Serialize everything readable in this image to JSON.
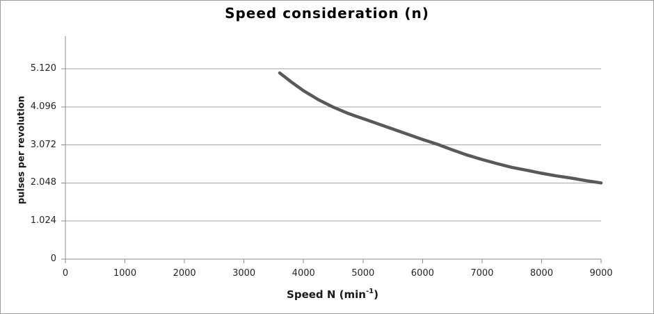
{
  "chart": {
    "title": "Speed consideration (n)",
    "ylabel": "pulses per revolution",
    "xlabel_parts": {
      "main": "Speed N (min",
      "sup": "-1",
      "close": ")"
    }
  },
  "chart_data": {
    "type": "line",
    "title": "Speed consideration (n)",
    "xlabel": "Speed N (min-1)",
    "ylabel": "pulses per revolution",
    "xlim": [
      0,
      9000
    ],
    "ylim": [
      0,
      6000
    ],
    "x_ticks": [
      "0",
      "1000",
      "2000",
      "3000",
      "4000",
      "5000",
      "6000",
      "7000",
      "8000",
      "9000"
    ],
    "y_ticks": [
      {
        "value": 5120,
        "label": "5.120"
      },
      {
        "value": 4096,
        "label": "4.096"
      },
      {
        "value": 3072,
        "label": "3.072"
      },
      {
        "value": 2048,
        "label": "2.048"
      },
      {
        "value": 1024,
        "label": "1.024"
      },
      {
        "value": 0,
        "label": "0"
      }
    ],
    "grid": "horizontal-only",
    "legend": "none",
    "series": [
      {
        "color": "#595959",
        "stroke_width": 4.5,
        "points": [
          [
            3600,
            5010
          ],
          [
            3800,
            4760
          ],
          [
            4000,
            4530
          ],
          [
            4250,
            4290
          ],
          [
            4500,
            4090
          ],
          [
            4750,
            3920
          ],
          [
            5000,
            3780
          ],
          [
            5250,
            3640
          ],
          [
            5500,
            3500
          ],
          [
            5750,
            3360
          ],
          [
            6000,
            3220
          ],
          [
            6250,
            3090
          ],
          [
            6500,
            2940
          ],
          [
            6750,
            2800
          ],
          [
            7000,
            2680
          ],
          [
            7250,
            2570
          ],
          [
            7500,
            2470
          ],
          [
            7750,
            2390
          ],
          [
            8000,
            2310
          ],
          [
            8250,
            2240
          ],
          [
            8500,
            2180
          ],
          [
            8750,
            2110
          ],
          [
            9000,
            2050
          ]
        ]
      }
    ]
  },
  "colors": {
    "background": "#ffffff",
    "frame_border": "#9d9d9d",
    "gridline": "#a6a6a6",
    "axis": "#8c8c8c",
    "tick_text": "#262626",
    "title_text": "#000000",
    "curve": "#595959"
  }
}
